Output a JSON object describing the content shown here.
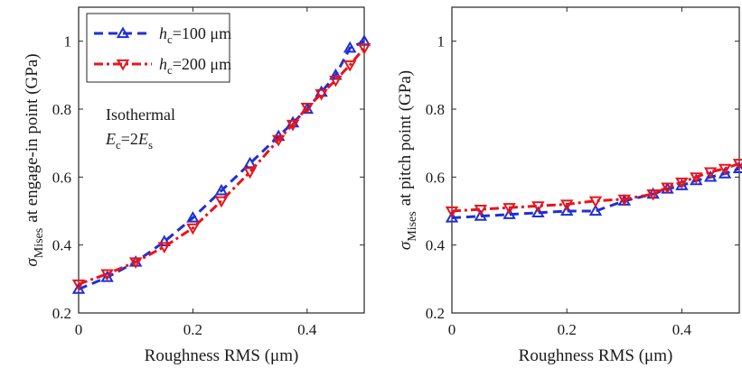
{
  "colors": {
    "blue": "#1f2fd6",
    "red": "#e8141b",
    "axis": "#262626"
  },
  "chart_data": [
    {
      "type": "line",
      "panel": "left",
      "xlabel": "Roughness RMS (μm)",
      "ylabel": {
        "symbol": "σ",
        "subscript": "Mises",
        "text": "at engage-in point (GPa)"
      },
      "xlim": [
        0,
        0.5
      ],
      "ylim": [
        0.2,
        1.1
      ],
      "xticks": [
        "0",
        "0.2",
        "0.4"
      ],
      "xtick_values": [
        0,
        0.2,
        0.4
      ],
      "yticks": [
        "0.2",
        "0.4",
        "0.6",
        "0.8",
        "1"
      ],
      "ytick_values": [
        0.2,
        0.4,
        0.6,
        0.8,
        1.0
      ],
      "grid": false,
      "legend_position": "top-left",
      "x": [
        0,
        0.05,
        0.1,
        0.15,
        0.2,
        0.25,
        0.3,
        0.35,
        0.375,
        0.4,
        0.425,
        0.45,
        0.475,
        0.5
      ],
      "series": [
        {
          "name": "hc=100 μm",
          "legend": {
            "var": "h",
            "sub": "c",
            "rest": "=100 μm"
          },
          "color": "#1f2fd6",
          "linestyle": "dashed",
          "marker": "triangle-up",
          "values": [
            0.27,
            0.305,
            0.35,
            0.41,
            0.48,
            0.56,
            0.64,
            0.72,
            0.76,
            0.8,
            0.85,
            0.9,
            0.98,
            1.0
          ]
        },
        {
          "name": "hc=200 μm",
          "legend": {
            "var": "h",
            "sub": "c",
            "rest": "=200 μm"
          },
          "color": "#e8141b",
          "linestyle": "dashdot",
          "marker": "triangle-down",
          "values": [
            0.285,
            0.315,
            0.35,
            0.395,
            0.45,
            0.53,
            0.615,
            0.71,
            0.755,
            0.805,
            0.845,
            0.885,
            0.93,
            0.98
          ]
        }
      ],
      "annotations": {
        "line1": "Isothermal",
        "line2": {
          "a": "E",
          "a_sub": "c",
          "mid": "=2",
          "b": "E",
          "b_sub": "s"
        }
      }
    },
    {
      "type": "line",
      "panel": "right",
      "xlabel": "Roughness RMS (μm)",
      "ylabel": {
        "symbol": "σ",
        "subscript": "Mises",
        "text": "at pitch point (GPa)"
      },
      "xlim": [
        0,
        0.5
      ],
      "ylim": [
        0.2,
        1.1
      ],
      "xticks": [
        "0",
        "0.2",
        "0.4"
      ],
      "xtick_values": [
        0,
        0.2,
        0.4
      ],
      "yticks": [
        "0.2",
        "0.4",
        "0.6",
        "0.8",
        "1"
      ],
      "ytick_values": [
        0.2,
        0.4,
        0.6,
        0.8,
        1.0
      ],
      "grid": false,
      "x": [
        0,
        0.05,
        0.1,
        0.15,
        0.2,
        0.25,
        0.3,
        0.35,
        0.375,
        0.4,
        0.425,
        0.45,
        0.475,
        0.5
      ],
      "series": [
        {
          "color": "#1f2fd6",
          "linestyle": "dashed",
          "marker": "triangle-up",
          "values": [
            0.48,
            0.485,
            0.49,
            0.495,
            0.5,
            0.5,
            0.53,
            0.55,
            0.565,
            0.575,
            0.59,
            0.6,
            0.61,
            0.625
          ]
        },
        {
          "color": "#e8141b",
          "linestyle": "dashdot",
          "marker": "triangle-down",
          "values": [
            0.5,
            0.505,
            0.51,
            0.515,
            0.52,
            0.53,
            0.535,
            0.55,
            0.57,
            0.585,
            0.6,
            0.615,
            0.625,
            0.64
          ]
        }
      ]
    }
  ]
}
